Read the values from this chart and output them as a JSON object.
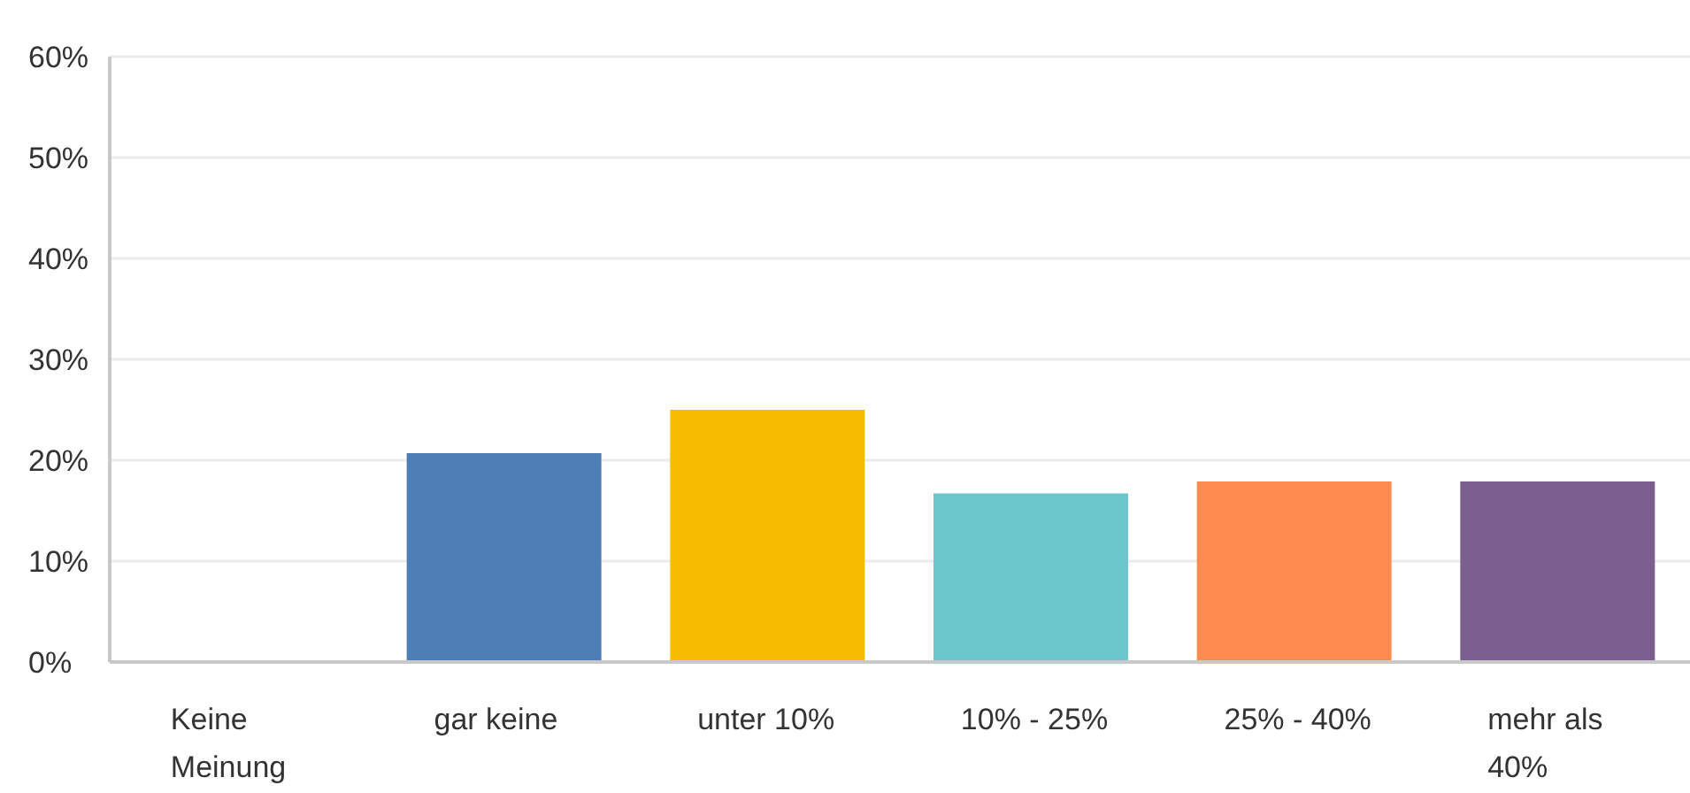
{
  "chart_data": {
    "type": "bar",
    "categories": [
      "Keine Meinung",
      "gar keine",
      "unter 10%",
      "10% - 25%",
      "25% - 40%",
      "mehr als 40%"
    ],
    "values": [
      0,
      20.7,
      25,
      16.7,
      17.9,
      17.9
    ],
    "colors": [
      "#4f7db5",
      "#4f7db5",
      "#f8bd00",
      "#6cc7cd",
      "#ff8b50",
      "#7c5f8f"
    ],
    "ylim": [
      0,
      60
    ],
    "yticks": [
      {
        "value": 0,
        "label": "0%"
      },
      {
        "value": 10,
        "label": "10%"
      },
      {
        "value": 20,
        "label": "20%"
      },
      {
        "value": 30,
        "label": "30%"
      },
      {
        "value": 40,
        "label": "40%"
      },
      {
        "value": 50,
        "label": "50%"
      },
      {
        "value": 60,
        "label": "60%"
      }
    ],
    "grid": "y",
    "legend": false
  }
}
